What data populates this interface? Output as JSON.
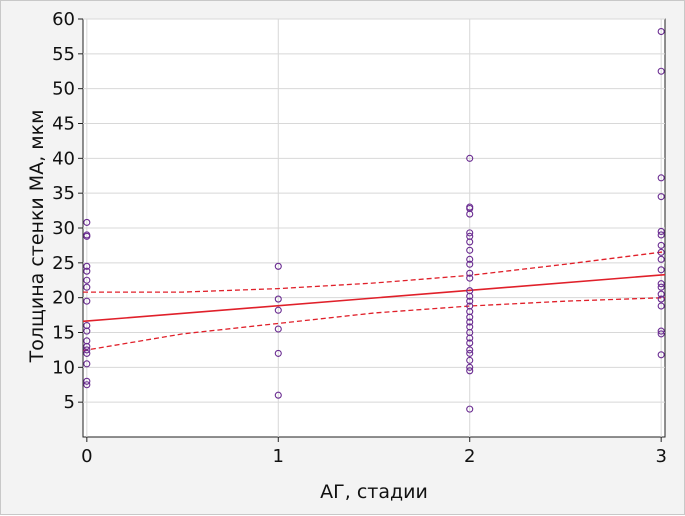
{
  "chart_data": {
    "type": "scatter",
    "xlabel": "АГ, стадии",
    "ylabel": "Толщина стенки МА, мкм",
    "xlim": [
      -0.02,
      3.02
    ],
    "ylim": [
      0,
      60
    ],
    "xticks": [
      0,
      1,
      2,
      3
    ],
    "yticks": [
      5,
      10,
      15,
      20,
      25,
      30,
      35,
      40,
      45,
      50,
      55,
      60
    ],
    "grid": true,
    "colors": {
      "points": "#6a2c91",
      "regression": "#e0202a",
      "grid": "#d8d8d8"
    },
    "points": [
      {
        "x": 0,
        "y": 7.5
      },
      {
        "x": 0,
        "y": 8.0
      },
      {
        "x": 0,
        "y": 10.5
      },
      {
        "x": 0,
        "y": 12.0
      },
      {
        "x": 0,
        "y": 12.5
      },
      {
        "x": 0,
        "y": 13.0
      },
      {
        "x": 0,
        "y": 13.8
      },
      {
        "x": 0,
        "y": 15.2
      },
      {
        "x": 0,
        "y": 16.0
      },
      {
        "x": 0,
        "y": 19.5
      },
      {
        "x": 0,
        "y": 21.5
      },
      {
        "x": 0,
        "y": 22.5
      },
      {
        "x": 0,
        "y": 23.8
      },
      {
        "x": 0,
        "y": 24.5
      },
      {
        "x": 0,
        "y": 28.8
      },
      {
        "x": 0,
        "y": 29.0
      },
      {
        "x": 0,
        "y": 30.8
      },
      {
        "x": 1,
        "y": 6.0
      },
      {
        "x": 1,
        "y": 12.0
      },
      {
        "x": 1,
        "y": 15.5
      },
      {
        "x": 1,
        "y": 18.2
      },
      {
        "x": 1,
        "y": 19.8
      },
      {
        "x": 1,
        "y": 24.5
      },
      {
        "x": 2,
        "y": 4.0
      },
      {
        "x": 2,
        "y": 9.5
      },
      {
        "x": 2,
        "y": 10.0
      },
      {
        "x": 2,
        "y": 11.0
      },
      {
        "x": 2,
        "y": 12.0
      },
      {
        "x": 2,
        "y": 12.5
      },
      {
        "x": 2,
        "y": 13.5
      },
      {
        "x": 2,
        "y": 14.2
      },
      {
        "x": 2,
        "y": 15.0
      },
      {
        "x": 2,
        "y": 15.8
      },
      {
        "x": 2,
        "y": 16.5
      },
      {
        "x": 2,
        "y": 17.2
      },
      {
        "x": 2,
        "y": 18.0
      },
      {
        "x": 2,
        "y": 18.8
      },
      {
        "x": 2,
        "y": 19.5
      },
      {
        "x": 2,
        "y": 20.2
      },
      {
        "x": 2,
        "y": 21.0
      },
      {
        "x": 2,
        "y": 22.8
      },
      {
        "x": 2,
        "y": 23.5
      },
      {
        "x": 2,
        "y": 24.8
      },
      {
        "x": 2,
        "y": 25.5
      },
      {
        "x": 2,
        "y": 26.8
      },
      {
        "x": 2,
        "y": 28.0
      },
      {
        "x": 2,
        "y": 28.8
      },
      {
        "x": 2,
        "y": 29.3
      },
      {
        "x": 2,
        "y": 32.0
      },
      {
        "x": 2,
        "y": 32.8
      },
      {
        "x": 2,
        "y": 33.0
      },
      {
        "x": 2,
        "y": 40.0
      },
      {
        "x": 3,
        "y": 11.8
      },
      {
        "x": 3,
        "y": 14.8
      },
      {
        "x": 3,
        "y": 15.2
      },
      {
        "x": 3,
        "y": 18.8
      },
      {
        "x": 3,
        "y": 19.8
      },
      {
        "x": 3,
        "y": 20.5
      },
      {
        "x": 3,
        "y": 21.5
      },
      {
        "x": 3,
        "y": 22.0
      },
      {
        "x": 3,
        "y": 24.0
      },
      {
        "x": 3,
        "y": 25.5
      },
      {
        "x": 3,
        "y": 26.5
      },
      {
        "x": 3,
        "y": 27.5
      },
      {
        "x": 3,
        "y": 29.0
      },
      {
        "x": 3,
        "y": 29.5
      },
      {
        "x": 3,
        "y": 34.5
      },
      {
        "x": 3,
        "y": 37.2
      },
      {
        "x": 3,
        "y": 52.5
      },
      {
        "x": 3,
        "y": 58.2
      }
    ],
    "regression_line": [
      {
        "x": -0.02,
        "y": 16.6
      },
      {
        "x": 3.02,
        "y": 23.3
      }
    ],
    "confidence_upper": [
      {
        "x": -0.02,
        "y": 20.8
      },
      {
        "x": 0.5,
        "y": 20.8
      },
      {
        "x": 1,
        "y": 21.3
      },
      {
        "x": 1.5,
        "y": 22.1
      },
      {
        "x": 2,
        "y": 23.2
      },
      {
        "x": 2.5,
        "y": 24.8
      },
      {
        "x": 3.02,
        "y": 26.6
      }
    ],
    "confidence_lower": [
      {
        "x": -0.02,
        "y": 12.4
      },
      {
        "x": 0.5,
        "y": 14.8
      },
      {
        "x": 1,
        "y": 16.3
      },
      {
        "x": 1.5,
        "y": 17.8
      },
      {
        "x": 2,
        "y": 18.8
      },
      {
        "x": 2.5,
        "y": 19.5
      },
      {
        "x": 3.02,
        "y": 20.0
      }
    ]
  }
}
